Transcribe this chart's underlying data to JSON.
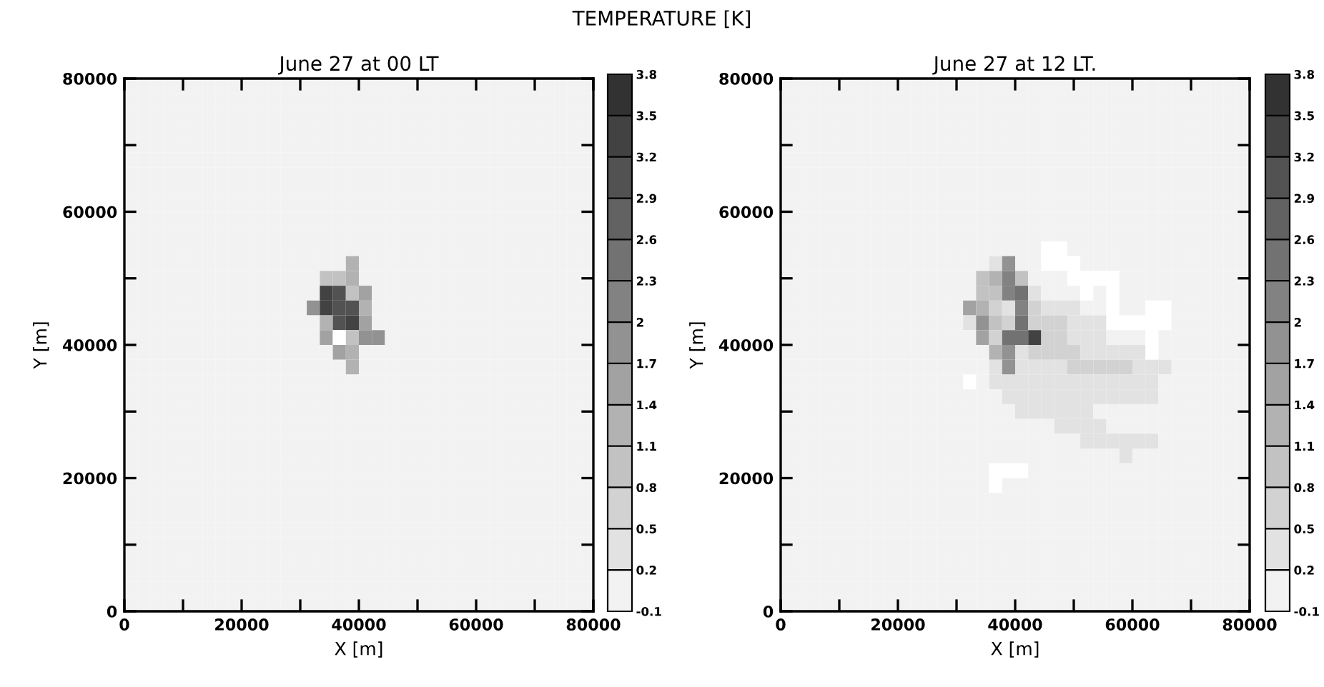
{
  "chart_data": [
    {
      "type": "heatmap",
      "title": "June 27 at 00 LT",
      "xlabel": "X [m]",
      "ylabel": "Y [m]",
      "annotations": [
        "TEMPERATURE [K]"
      ],
      "xlim": [
        0,
        80000
      ],
      "ylim": [
        0,
        80000
      ],
      "xticks": [
        0,
        {
          "value": 10000,
          "label": null
        },
        20000,
        {
          "value": 30000,
          "label": null
        },
        40000,
        {
          "value": 50000,
          "label": null
        },
        60000,
        {
          "value": 70000,
          "label": null
        },
        80000
      ],
      "yticks": [
        0,
        {
          "value": 10000,
          "label": null
        },
        20000,
        {
          "value": 30000,
          "label": null
        },
        40000,
        {
          "value": 50000,
          "label": null
        },
        60000,
        {
          "value": 70000,
          "label": null
        },
        80000
      ],
      "clim": [
        -0.1,
        3.8
      ],
      "cticks": [
        -0.1,
        0.2,
        0.5,
        0.8,
        1.1,
        1.4,
        1.7,
        2,
        2.3,
        2.6,
        2.9,
        3.2,
        3.5,
        3.8
      ],
      "colors": [
        "#f2f2f2",
        "#e2e2e2",
        "#d2d2d2",
        "#c2c2c2",
        "#b2b2b2",
        "#a2a2a2",
        "#929292",
        "#828282",
        "#727272",
        "#626262",
        "#525252",
        "#424242",
        "#323232"
      ],
      "x": [
        1111,
        3333,
        5556,
        7778,
        10000,
        12222,
        14444,
        16667,
        18889,
        21111,
        23333,
        25556,
        27778,
        30000,
        32222,
        34444,
        36667,
        38889,
        41111,
        43333,
        45556,
        47778,
        50000,
        52222,
        54444,
        56667,
        58889,
        61111,
        63333,
        65556,
        67778,
        70000,
        72222,
        74444,
        76667,
        78889
      ],
      "cells": [
        [
          0,
          0,
          0,
          0,
          0,
          0,
          0,
          0,
          0,
          0,
          0,
          0,
          0,
          0,
          0,
          0,
          0,
          0,
          0,
          0,
          0,
          0,
          0,
          0,
          0,
          0,
          0,
          0,
          0,
          0,
          0,
          0,
          0,
          0,
          0,
          0
        ],
        [
          0,
          0,
          0,
          0,
          0,
          0,
          0,
          0,
          0,
          0,
          0,
          0,
          0,
          0,
          0,
          0,
          0,
          0,
          0,
          0,
          0,
          0,
          0,
          0,
          0,
          0,
          0,
          0,
          0,
          0,
          0,
          0,
          0,
          0,
          0,
          0
        ],
        [
          0,
          0,
          0,
          0,
          0,
          0,
          0,
          0,
          0,
          0,
          0,
          0,
          0,
          0,
          0,
          0,
          0,
          0,
          0,
          0,
          0,
          0,
          0,
          0,
          0,
          0,
          0,
          0,
          0,
          0,
          0,
          0,
          0,
          0,
          0,
          0
        ],
        [
          0,
          0,
          0,
          0,
          0,
          0,
          0,
          0,
          0,
          0,
          0,
          0,
          0,
          0,
          0,
          0,
          0,
          0,
          0,
          0,
          0,
          0,
          0,
          0,
          0,
          0,
          0,
          0,
          0,
          0,
          0,
          0,
          0,
          0,
          0,
          0
        ],
        [
          0,
          0,
          0,
          0,
          0,
          0,
          0,
          0,
          0,
          0,
          0,
          0,
          0,
          0,
          0,
          0,
          0,
          0,
          0,
          0,
          0,
          0,
          0,
          0,
          0,
          0,
          0,
          0,
          0,
          0,
          0,
          0,
          0,
          0,
          0,
          0
        ],
        [
          0,
          0,
          0,
          0,
          0,
          0,
          0,
          0,
          0,
          0,
          0,
          0,
          0,
          0,
          0,
          0,
          0,
          0,
          0,
          0,
          0,
          0,
          0,
          0,
          0,
          0,
          0,
          0,
          0,
          0,
          0,
          0,
          0,
          0,
          0,
          0
        ],
        [
          0,
          0,
          0,
          0,
          0,
          0,
          0,
          0,
          0,
          0,
          0,
          0,
          0,
          0,
          0,
          0,
          0,
          0,
          0,
          0,
          0,
          0,
          0,
          0,
          0,
          0,
          0,
          0,
          0,
          0,
          0,
          0,
          0,
          0,
          0,
          0
        ],
        [
          0,
          0,
          0,
          0,
          0,
          0,
          0,
          0,
          0,
          0,
          0,
          0,
          0,
          0,
          0,
          0,
          0,
          0,
          0,
          0,
          0,
          0,
          0,
          0,
          0,
          0,
          0,
          0,
          0,
          0,
          0,
          0,
          0,
          0,
          0,
          0
        ],
        [
          0,
          0,
          0,
          0,
          0,
          0,
          0,
          0,
          0,
          0,
          0,
          0,
          0,
          0,
          0,
          0,
          0,
          0,
          0,
          0,
          0,
          0,
          0,
          0,
          0,
          0,
          0,
          0,
          0,
          0,
          0,
          0,
          0,
          0,
          0,
          0
        ],
        [
          0,
          0,
          0,
          0,
          0,
          0,
          0,
          0,
          0,
          0,
          0,
          0,
          0,
          0,
          0,
          0,
          0,
          0,
          0,
          0,
          0,
          0,
          0,
          0,
          0,
          0,
          0,
          0,
          0,
          0,
          0,
          0,
          0,
          0,
          0,
          0
        ],
        [
          0,
          0,
          0,
          0,
          0,
          0,
          0,
          0,
          0,
          0,
          0,
          0,
          0,
          0,
          0,
          0,
          0,
          0,
          0,
          0,
          0,
          0,
          0,
          0,
          0,
          0,
          0,
          0,
          0,
          0,
          0,
          0,
          0,
          0,
          0,
          0
        ],
        [
          0,
          0,
          0,
          0,
          0,
          0,
          0,
          0,
          0,
          0,
          0,
          0,
          0,
          0,
          0,
          0,
          0,
          0,
          0,
          0,
          0,
          0,
          0,
          0,
          0,
          0,
          0,
          0,
          0,
          0,
          0,
          0,
          0,
          0,
          0,
          0
        ],
        [
          0,
          0,
          0,
          0,
          0,
          0,
          0,
          0,
          0,
          0,
          0,
          0,
          0,
          0,
          0,
          0,
          0,
          1.3,
          0,
          0,
          0,
          0,
          0,
          0,
          0,
          0,
          0,
          0,
          0,
          0,
          0,
          0,
          0,
          0,
          0,
          0
        ],
        [
          0,
          0,
          0,
          0,
          0,
          0,
          0,
          0,
          0,
          0,
          0,
          0,
          0,
          0,
          0,
          1,
          1,
          1.3,
          0,
          0,
          0,
          0,
          0,
          0,
          0,
          0,
          0,
          0,
          0,
          0,
          0,
          0,
          0,
          0,
          0,
          0
        ],
        [
          0,
          0,
          0,
          0,
          0,
          0,
          0,
          0,
          0,
          0,
          0,
          0,
          0,
          0,
          0,
          3.4,
          3.1,
          1,
          1.6,
          0,
          0,
          0,
          0,
          0,
          0,
          0,
          0,
          0,
          0,
          0,
          0,
          0,
          0,
          0,
          0,
          0
        ],
        [
          0,
          0,
          0,
          0,
          0,
          0,
          0,
          0,
          0,
          0,
          0,
          0,
          0,
          0,
          1.9,
          3.4,
          3.1,
          3.1,
          1.3,
          0,
          0,
          0,
          0,
          0,
          0,
          0,
          0,
          0,
          0,
          0,
          0,
          0,
          0,
          0,
          0,
          0
        ],
        [
          0,
          0,
          0,
          0,
          0,
          0,
          0,
          0,
          0,
          0,
          0,
          0,
          0,
          0,
          0,
          1.3,
          3.1,
          3.4,
          1.6,
          0,
          0,
          0,
          0,
          0,
          0,
          0,
          0,
          0,
          0,
          0,
          0,
          0,
          0,
          0,
          0,
          0
        ],
        [
          0,
          0,
          0,
          0,
          0,
          0,
          0,
          0,
          0,
          0,
          0,
          0,
          0,
          0,
          0,
          1.6,
          null,
          1,
          1.9,
          1.9,
          0,
          0,
          0,
          0,
          0,
          0,
          0,
          0,
          0,
          0,
          0,
          0,
          0,
          0,
          0,
          0
        ],
        [
          0,
          0,
          0,
          0,
          0,
          0,
          0,
          0,
          0,
          0,
          0,
          0,
          0,
          0,
          0,
          0,
          1.6,
          1.3,
          0,
          0,
          0,
          0,
          0,
          0,
          0,
          0,
          0,
          0,
          0,
          0,
          0,
          0,
          0,
          0,
          0,
          0
        ],
        [
          0,
          0,
          0,
          0,
          0,
          0,
          0,
          0,
          0,
          0,
          0,
          0,
          0,
          0,
          0,
          0,
          0,
          1.3,
          0,
          0,
          0,
          0,
          0,
          0,
          0,
          0,
          0,
          0,
          0,
          0,
          0,
          0,
          0,
          0,
          0,
          0
        ],
        [
          0,
          0,
          0,
          0,
          0,
          0,
          0,
          0,
          0,
          0,
          0,
          0,
          0,
          0,
          0,
          0,
          0,
          0,
          0,
          0,
          0,
          0,
          0,
          0,
          0,
          0,
          0,
          0,
          0,
          0,
          0,
          0,
          0,
          0,
          0,
          0
        ],
        [
          0,
          0,
          0,
          0,
          0,
          0,
          0,
          0,
          0,
          0,
          0,
          0,
          0,
          0,
          0,
          0,
          0,
          0,
          0,
          0,
          0,
          0,
          0,
          0,
          0,
          0,
          0,
          0,
          0,
          0,
          0,
          0,
          0,
          0,
          0,
          0
        ],
        [
          0,
          0,
          0,
          0,
          0,
          0,
          0,
          0,
          0,
          0,
          0,
          0,
          0,
          0,
          0,
          0,
          0,
          0,
          0,
          0,
          0,
          0,
          0,
          0,
          0,
          0,
          0,
          0,
          0,
          0,
          0,
          0,
          0,
          0,
          0,
          0
        ],
        [
          0,
          0,
          0,
          0,
          0,
          0,
          0,
          0,
          0,
          0,
          0,
          0,
          0,
          0,
          0,
          0,
          0,
          0,
          0,
          0,
          0,
          0,
          0,
          0,
          0,
          0,
          0,
          0,
          0,
          0,
          0,
          0,
          0,
          0,
          0,
          0
        ],
        [
          0,
          0,
          0,
          0,
          0,
          0,
          0,
          0,
          0,
          0,
          0,
          0,
          0,
          0,
          0,
          0,
          0,
          0,
          0,
          0,
          0,
          0,
          0,
          0,
          0,
          0,
          0,
          0,
          0,
          0,
          0,
          0,
          0,
          0,
          0,
          0
        ],
        [
          0,
          0,
          0,
          0,
          0,
          0,
          0,
          0,
          0,
          0,
          0,
          0,
          0,
          0,
          0,
          0,
          0,
          0,
          0,
          0,
          0,
          0,
          0,
          0,
          0,
          0,
          0,
          0,
          0,
          0,
          0,
          0,
          0,
          0,
          0,
          0
        ],
        [
          0,
          0,
          0,
          0,
          0,
          0,
          0,
          0,
          0,
          0,
          0,
          0,
          0,
          0,
          0,
          0,
          0,
          0,
          0,
          0,
          0,
          0,
          0,
          0,
          0,
          0,
          0,
          0,
          0,
          0,
          0,
          0,
          0,
          0,
          0,
          0
        ],
        [
          0,
          0,
          0,
          0,
          0,
          0,
          0,
          0,
          0,
          0,
          0,
          0,
          0,
          0,
          0,
          0,
          0,
          0,
          0,
          0,
          0,
          0,
          0,
          0,
          0,
          0,
          0,
          0,
          0,
          0,
          0,
          0,
          0,
          0,
          0,
          0
        ],
        [
          0,
          0,
          0,
          0,
          0,
          0,
          0,
          0,
          0,
          0,
          0,
          0,
          0,
          0,
          0,
          0,
          0,
          0,
          0,
          0,
          0,
          0,
          0,
          0,
          0,
          0,
          0,
          0,
          0,
          0,
          0,
          0,
          0,
          0,
          0,
          0
        ],
        [
          0,
          0,
          0,
          0,
          0,
          0,
          0,
          0,
          0,
          0,
          0,
          0,
          0,
          0,
          0,
          0,
          0,
          0,
          0,
          0,
          0,
          0,
          0,
          0,
          0,
          0,
          0,
          0,
          0,
          0,
          0,
          0,
          0,
          0,
          0,
          0
        ],
        [
          0,
          0,
          0,
          0,
          0,
          0,
          0,
          0,
          0,
          0,
          0,
          0,
          0,
          0,
          0,
          0,
          0,
          0,
          0,
          0,
          0,
          0,
          0,
          0,
          0,
          0,
          0,
          0,
          0,
          0,
          0,
          0,
          0,
          0,
          0,
          0
        ],
        [
          0,
          0,
          0,
          0,
          0,
          0,
          0,
          0,
          0,
          0,
          0,
          0,
          0,
          0,
          0,
          0,
          0,
          0,
          0,
          0,
          0,
          0,
          0,
          0,
          0,
          0,
          0,
          0,
          0,
          0,
          0,
          0,
          0,
          0,
          0,
          0
        ],
        [
          0,
          0,
          0,
          0,
          0,
          0,
          0,
          0,
          0,
          0,
          0,
          0,
          0,
          0,
          0,
          0,
          0,
          0,
          0,
          0,
          0,
          0,
          0,
          0,
          0,
          0,
          0,
          0,
          0,
          0,
          0,
          0,
          0,
          0,
          0,
          0
        ],
        [
          0,
          0,
          0,
          0,
          0,
          0,
          0,
          0,
          0,
          0,
          0,
          0,
          0,
          0,
          0,
          0,
          0,
          0,
          0,
          0,
          0,
          0,
          0,
          0,
          0,
          0,
          0,
          0,
          0,
          0,
          0,
          0,
          0,
          0,
          0,
          0
        ],
        [
          0,
          0,
          0,
          0,
          0,
          0,
          0,
          0,
          0,
          0,
          0,
          0,
          0,
          0,
          0,
          0,
          0,
          0,
          0,
          0,
          0,
          0,
          0,
          0,
          0,
          0,
          0,
          0,
          0,
          0,
          0,
          0,
          0,
          0,
          0,
          0
        ],
        [
          0,
          0,
          0,
          0,
          0,
          0,
          0,
          0,
          0,
          0,
          0,
          0,
          0,
          0,
          0,
          0,
          0,
          0,
          0,
          0,
          0,
          0,
          0,
          0,
          0,
          0,
          0,
          0,
          0,
          0,
          0,
          0,
          0,
          0,
          0,
          0
        ]
      ]
    },
    {
      "type": "heatmap",
      "title": "June 27 at 12 LT.",
      "xlabel": "X [m]",
      "ylabel": "Y [m]",
      "xlim": [
        0,
        80000
      ],
      "ylim": [
        0,
        80000
      ],
      "xticks": [
        0,
        {
          "value": 10000,
          "label": null
        },
        20000,
        {
          "value": 30000,
          "label": null
        },
        40000,
        {
          "value": 50000,
          "label": null
        },
        60000,
        {
          "value": 70000,
          "label": null
        },
        80000
      ],
      "yticks": [
        0,
        {
          "value": 10000,
          "label": null
        },
        20000,
        {
          "value": 30000,
          "label": null
        },
        40000,
        {
          "value": 50000,
          "label": null
        },
        60000,
        {
          "value": 70000,
          "label": null
        },
        80000
      ],
      "clim": [
        -0.1,
        3.8
      ],
      "cticks": [
        -0.1,
        0.2,
        0.5,
        0.8,
        1.1,
        1.4,
        1.7,
        2,
        2.3,
        2.6,
        2.9,
        3.2,
        3.5,
        3.8
      ],
      "colors": [
        "#f2f2f2",
        "#e2e2e2",
        "#d2d2d2",
        "#c2c2c2",
        "#b2b2b2",
        "#a2a2a2",
        "#929292",
        "#828282",
        "#727272",
        "#626262",
        "#525252",
        "#424242",
        "#323232"
      ],
      "x": [
        1111,
        3333,
        5556,
        7778,
        10000,
        12222,
        14444,
        16667,
        18889,
        21111,
        23333,
        25556,
        27778,
        30000,
        32222,
        34444,
        36667,
        38889,
        41111,
        43333,
        45556,
        47778,
        50000,
        52222,
        54444,
        56667,
        58889,
        61111,
        63333,
        65556,
        67778,
        70000,
        72222,
        74444,
        76667,
        78889
      ],
      "cells": [
        [
          0,
          0,
          0,
          0,
          0,
          0,
          0,
          0,
          0,
          0,
          0,
          0,
          0,
          0,
          0,
          0,
          0,
          0,
          0,
          0,
          0,
          0,
          0,
          0,
          0,
          0,
          0,
          0,
          0,
          0,
          0,
          0,
          0,
          0,
          0,
          0
        ],
        [
          0,
          0,
          0,
          0,
          0,
          0,
          0,
          0,
          0,
          0,
          0,
          0,
          0,
          0,
          0,
          0,
          0,
          0,
          0,
          0,
          0,
          0,
          0,
          0,
          0,
          0,
          0,
          0,
          0,
          0,
          0,
          0,
          0,
          0,
          0,
          0
        ],
        [
          0,
          0,
          0,
          0,
          0,
          0,
          0,
          0,
          0,
          0,
          0,
          0,
          0,
          0,
          0,
          0,
          0,
          0,
          0,
          0,
          0,
          0,
          0,
          0,
          0,
          0,
          0,
          0,
          0,
          0,
          0,
          0,
          0,
          0,
          0,
          0
        ],
        [
          0,
          0,
          0,
          0,
          0,
          0,
          0,
          0,
          0,
          0,
          0,
          0,
          0,
          0,
          0,
          0,
          0,
          0,
          0,
          0,
          0,
          0,
          0,
          0,
          0,
          0,
          0,
          0,
          0,
          0,
          0,
          0,
          0,
          0,
          0,
          0
        ],
        [
          0,
          0,
          0,
          0,
          0,
          0,
          0,
          0,
          0,
          0,
          0,
          0,
          0,
          0,
          0,
          0,
          0,
          0,
          0,
          0,
          0,
          0,
          0,
          0,
          0,
          0,
          0,
          0,
          0,
          0,
          0,
          0,
          0,
          0,
          0,
          0
        ],
        [
          0,
          0,
          0,
          0,
          0,
          0,
          0,
          0,
          0,
          0,
          0,
          0,
          0,
          0,
          0,
          0,
          0,
          0,
          0,
          0,
          0,
          0,
          0,
          0,
          0,
          0,
          0,
          0,
          0,
          0,
          0,
          0,
          0,
          0,
          0,
          0
        ],
        [
          0,
          0,
          0,
          0,
          0,
          0,
          0,
          0,
          0,
          0,
          0,
          0,
          0,
          0,
          0,
          0,
          0,
          0,
          0,
          0,
          0,
          0,
          0,
          0,
          0,
          0,
          0,
          0,
          0,
          0,
          0,
          0,
          0,
          0,
          0,
          0
        ],
        [
          0,
          0,
          0,
          0,
          0,
          0,
          0,
          0,
          0,
          0,
          0,
          0,
          0,
          0,
          0,
          0,
          0,
          0,
          0,
          0,
          0,
          0,
          0,
          0,
          0,
          0,
          0,
          0,
          0,
          0,
          0,
          0,
          0,
          0,
          0,
          0
        ],
        [
          0,
          0,
          0,
          0,
          0,
          0,
          0,
          0,
          0,
          0,
          0,
          0,
          0,
          0,
          0,
          0,
          0,
          0,
          0,
          0,
          0,
          0,
          0,
          0,
          0,
          0,
          0,
          0,
          0,
          0,
          0,
          0,
          0,
          0,
          0,
          0
        ],
        [
          0,
          0,
          0,
          0,
          0,
          0,
          0,
          0,
          0,
          0,
          0,
          0,
          0,
          0,
          0,
          0,
          0,
          0,
          0,
          0,
          0,
          0,
          0,
          0,
          0,
          0,
          0,
          0,
          0,
          0,
          0,
          0,
          0,
          0,
          0,
          0
        ],
        [
          0,
          0,
          0,
          0,
          0,
          0,
          0,
          0,
          0,
          0,
          0,
          0,
          0,
          0,
          0,
          0,
          0,
          0,
          0,
          0,
          0,
          0,
          0,
          0,
          0,
          0,
          0,
          0,
          0,
          0,
          0,
          0,
          0,
          0,
          0,
          0
        ],
        [
          0,
          0,
          0,
          0,
          0,
          0,
          0,
          0,
          0,
          0,
          0,
          0,
          0,
          0,
          0,
          0,
          0,
          0,
          0,
          0,
          null,
          null,
          0,
          0,
          0,
          0,
          0,
          0,
          0,
          0,
          0,
          0,
          0,
          0,
          0,
          0
        ],
        [
          0,
          0,
          0,
          0,
          0,
          0,
          0,
          0,
          0,
          0,
          0,
          0,
          0,
          0,
          0,
          0,
          0.4,
          1.9,
          0,
          0,
          null,
          null,
          null,
          0,
          0,
          0,
          0,
          0,
          0,
          0,
          0,
          0,
          0,
          0,
          0,
          0
        ],
        [
          0,
          0,
          0,
          0,
          0,
          0,
          0,
          0,
          0,
          0,
          0,
          0,
          0,
          0,
          0,
          1,
          1.3,
          2.2,
          1,
          0,
          0,
          0,
          null,
          null,
          null,
          null,
          0,
          0,
          0,
          0,
          0,
          0,
          0,
          0,
          0,
          0
        ],
        [
          0,
          0,
          0,
          0,
          0,
          0,
          0,
          0,
          0,
          0,
          0,
          0,
          0,
          0,
          0,
          1,
          1,
          2.2,
          2.5,
          0.4,
          0,
          0,
          0,
          null,
          0,
          null,
          0,
          0,
          0,
          0,
          0,
          0,
          0,
          0,
          0,
          0
        ],
        [
          0,
          0,
          0,
          0,
          0,
          0,
          0,
          0,
          0,
          0,
          0,
          0,
          0,
          0,
          1.6,
          1.3,
          0.7,
          0.4,
          2.2,
          0.7,
          0.4,
          0.4,
          0.4,
          0,
          0,
          null,
          0,
          0,
          null,
          null,
          0,
          0,
          0,
          0,
          0,
          0
        ],
        [
          0,
          0,
          0,
          0,
          0,
          0,
          0,
          0,
          0,
          0,
          0,
          0,
          0,
          0,
          0.4,
          1.9,
          1,
          0.7,
          2.5,
          0.7,
          0.7,
          0.7,
          0.4,
          0.4,
          0.4,
          null,
          null,
          null,
          null,
          null,
          0,
          0,
          0,
          0,
          0,
          0
        ],
        [
          0,
          0,
          0,
          0,
          0,
          0,
          0,
          0,
          0,
          0,
          0,
          0,
          0,
          0,
          0,
          1.6,
          0.7,
          2.5,
          2.5,
          3.4,
          0.7,
          0.7,
          0.4,
          0.4,
          0.4,
          0,
          0,
          0,
          null,
          0,
          0,
          0,
          0,
          0,
          0,
          0
        ],
        [
          0,
          0,
          0,
          0,
          0,
          0,
          0,
          0,
          0,
          0,
          0,
          0,
          0,
          0,
          0,
          0,
          1.3,
          1.9,
          0.4,
          0.7,
          0.7,
          0.7,
          0.7,
          0.4,
          0.4,
          0.4,
          0.4,
          0.4,
          null,
          0,
          0,
          0,
          0,
          0,
          0,
          0
        ],
        [
          0,
          0,
          0,
          0,
          0,
          0,
          0,
          0,
          0,
          0,
          0,
          0,
          0,
          0,
          0,
          0,
          0.4,
          1.9,
          0.4,
          0.4,
          0.4,
          0.4,
          0.7,
          0.7,
          0.7,
          0.7,
          0.7,
          0.4,
          0.4,
          0.4,
          0,
          0,
          0,
          0,
          0,
          0
        ],
        [
          0,
          0,
          0,
          0,
          0,
          0,
          0,
          0,
          0,
          0,
          0,
          0,
          0,
          0,
          null,
          0,
          0.4,
          0.4,
          0.4,
          0.4,
          0.4,
          0.4,
          0.4,
          0.4,
          0.4,
          0.4,
          0.4,
          0.4,
          0.4,
          0,
          0,
          0,
          0,
          0,
          0,
          0
        ],
        [
          0,
          0,
          0,
          0,
          0,
          0,
          0,
          0,
          0,
          0,
          0,
          0,
          0,
          0,
          0,
          0,
          0,
          0.4,
          0.4,
          0.4,
          0.4,
          0.4,
          0.4,
          0.4,
          0.4,
          0.4,
          0.4,
          0.4,
          0.4,
          0,
          0,
          0,
          0,
          0,
          0,
          0
        ],
        [
          0,
          0,
          0,
          0,
          0,
          0,
          0,
          0,
          0,
          0,
          0,
          0,
          0,
          0,
          0,
          0,
          0,
          0,
          0.4,
          0.4,
          0.4,
          0.4,
          0.4,
          0.4,
          0,
          0,
          0,
          0,
          0,
          0,
          0,
          0,
          0,
          0,
          0,
          0
        ],
        [
          0,
          0,
          0,
          0,
          0,
          0,
          0,
          0,
          0,
          0,
          0,
          0,
          0,
          0,
          0,
          0,
          0,
          0,
          0,
          0,
          0,
          0.4,
          0.4,
          0.4,
          0.4,
          0,
          0,
          0,
          0,
          0,
          0,
          0,
          0,
          0,
          0,
          0
        ],
        [
          0,
          0,
          0,
          0,
          0,
          0,
          0,
          0,
          0,
          0,
          0,
          0,
          0,
          0,
          0,
          0,
          0,
          0,
          0,
          0,
          0,
          0,
          0,
          0.4,
          0.4,
          0.4,
          0.4,
          0.4,
          0.4,
          0,
          0,
          0,
          0,
          0,
          0,
          0
        ],
        [
          0,
          0,
          0,
          0,
          0,
          0,
          0,
          0,
          0,
          0,
          0,
          0,
          0,
          0,
          0,
          0,
          0,
          0,
          0,
          0,
          0,
          0,
          0,
          0,
          0,
          0,
          0.4,
          0,
          0,
          0,
          0,
          0,
          0,
          0,
          0,
          0
        ],
        [
          0,
          0,
          0,
          0,
          0,
          0,
          0,
          0,
          0,
          0,
          0,
          0,
          0,
          0,
          0,
          0,
          null,
          null,
          null,
          0,
          0,
          0,
          0,
          0,
          0,
          0,
          0,
          0,
          0,
          0,
          0,
          0,
          0,
          0,
          0,
          0
        ],
        [
          0,
          0,
          0,
          0,
          0,
          0,
          0,
          0,
          0,
          0,
          0,
          0,
          0,
          0,
          0,
          0,
          null,
          0,
          0,
          0,
          0,
          0,
          0,
          0,
          0,
          0,
          0,
          0,
          0,
          0,
          0,
          0,
          0,
          0,
          0,
          0
        ],
        [
          0,
          0,
          0,
          0,
          0,
          0,
          0,
          0,
          0,
          0,
          0,
          0,
          0,
          0,
          0,
          0,
          0,
          0,
          0,
          0,
          0,
          0,
          0,
          0,
          0,
          0,
          0,
          0,
          0,
          0,
          0,
          0,
          0,
          0,
          0,
          0
        ],
        [
          0,
          0,
          0,
          0,
          0,
          0,
          0,
          0,
          0,
          0,
          0,
          0,
          0,
          0,
          0,
          0,
          0,
          0,
          0,
          0,
          0,
          0,
          0,
          0,
          0,
          0,
          0,
          0,
          0,
          0,
          0,
          0,
          0,
          0,
          0,
          0
        ],
        [
          0,
          0,
          0,
          0,
          0,
          0,
          0,
          0,
          0,
          0,
          0,
          0,
          0,
          0,
          0,
          0,
          0,
          0,
          0,
          0,
          0,
          0,
          0,
          0,
          0,
          0,
          0,
          0,
          0,
          0,
          0,
          0,
          0,
          0,
          0,
          0
        ],
        [
          0,
          0,
          0,
          0,
          0,
          0,
          0,
          0,
          0,
          0,
          0,
          0,
          0,
          0,
          0,
          0,
          0,
          0,
          0,
          0,
          0,
          0,
          0,
          0,
          0,
          0,
          0,
          0,
          0,
          0,
          0,
          0,
          0,
          0,
          0,
          0
        ],
        [
          0,
          0,
          0,
          0,
          0,
          0,
          0,
          0,
          0,
          0,
          0,
          0,
          0,
          0,
          0,
          0,
          0,
          0,
          0,
          0,
          0,
          0,
          0,
          0,
          0,
          0,
          0,
          0,
          0,
          0,
          0,
          0,
          0,
          0,
          0,
          0
        ],
        [
          0,
          0,
          0,
          0,
          0,
          0,
          0,
          0,
          0,
          0,
          0,
          0,
          0,
          0,
          0,
          0,
          0,
          0,
          0,
          0,
          0,
          0,
          0,
          0,
          0,
          0,
          0,
          0,
          0,
          0,
          0,
          0,
          0,
          0,
          0,
          0
        ],
        [
          0,
          0,
          0,
          0,
          0,
          0,
          0,
          0,
          0,
          0,
          0,
          0,
          0,
          0,
          0,
          0,
          0,
          0,
          0,
          0,
          0,
          0,
          0,
          0,
          0,
          0,
          0,
          0,
          0,
          0,
          0,
          0,
          0,
          0,
          0,
          0
        ],
        [
          0,
          0,
          0,
          0,
          0,
          0,
          0,
          0,
          0,
          0,
          0,
          0,
          0,
          0,
          0,
          0,
          0,
          0,
          0,
          0,
          0,
          0,
          0,
          0,
          0,
          0,
          0,
          0,
          0,
          0,
          0,
          0,
          0,
          0,
          0,
          0
        ]
      ]
    }
  ]
}
